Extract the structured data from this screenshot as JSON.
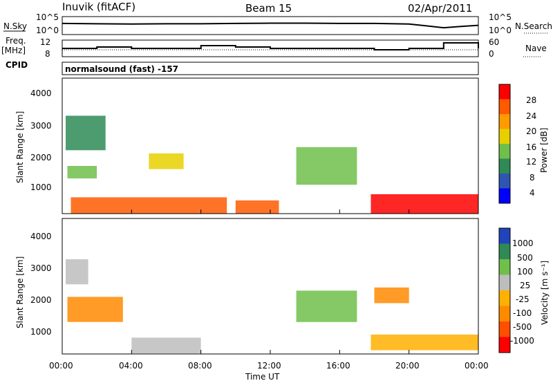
{
  "header": {
    "station": "Inuvik (fitACF)",
    "beam": "Beam 15",
    "date": "02/Apr/2011"
  },
  "nsky_panel": {
    "left_label": "N.Sky",
    "left_ticks": [
      "10^5",
      "10^0"
    ],
    "right_ticks": [
      "10^5",
      "10^0"
    ],
    "right_label": "N.Search"
  },
  "freq_panel": {
    "left_label_line1": "Freq.",
    "left_label_line2": "[MHz]",
    "left_ticks": [
      "12",
      "8"
    ],
    "right_ticks": [
      "60",
      "0"
    ],
    "right_label": "Nave"
  },
  "cpid": {
    "label": "CPID",
    "mode": "normalsound (fast) -157"
  },
  "power_panel": {
    "ylabel": "Slant Range [km]",
    "yticks": [
      "4000",
      "3000",
      "2000",
      "1000"
    ],
    "colorbar_label": "Power [dB]",
    "colorbar_ticks": [
      "28",
      "24",
      "20",
      "16",
      "12",
      "8",
      "4"
    ]
  },
  "velocity_panel": {
    "ylabel": "Slant Range [km]",
    "yticks": [
      "4000",
      "3000",
      "2000",
      "1000"
    ],
    "colorbar_label": "Velocity [m s⁻¹]",
    "colorbar_ticks": [
      "1000",
      "500",
      "100",
      "25",
      "-25",
      "-100",
      "-500",
      "-1000"
    ]
  },
  "xaxis": {
    "label": "Time UT",
    "ticks": [
      "00:00",
      "04:00",
      "08:00",
      "12:00",
      "16:00",
      "20:00",
      "00:00"
    ]
  },
  "colors": {
    "power_scale": [
      "#0000ff",
      "#2f55b0",
      "#2e8b57",
      "#6fbf4a",
      "#e8d000",
      "#ff9a00",
      "#ff5a00",
      "#ff0000"
    ],
    "velocity_scale": [
      "#2244bb",
      "#2e8b57",
      "#6fbf4a",
      "#bdbdbd",
      "#ffb000",
      "#ff8a00",
      "#ff4e00",
      "#ff0000"
    ]
  },
  "chart_data": [
    {
      "type": "line",
      "title": "N.Sky / N.Search",
      "x": [
        "00:00",
        "02:00",
        "04:00",
        "06:00",
        "08:00",
        "10:00",
        "12:00",
        "14:00",
        "16:00",
        "18:00",
        "20:00",
        "21:00",
        "22:00",
        "23:00",
        "00:00"
      ],
      "series": [
        {
          "name": "N.Sky",
          "values": [
            3.2,
            3.1,
            3.0,
            3.1,
            3.1,
            3.2,
            3.3,
            3.3,
            3.2,
            3.2,
            3.0,
            2.4,
            1.8,
            2.2,
            2.6
          ]
        }
      ],
      "ylim": [
        0,
        5
      ],
      "yscale": "log10"
    },
    {
      "type": "line",
      "title": "Freq. / Nave",
      "x": [
        "00:00",
        "02:00",
        "04:00",
        "06:00",
        "08:00",
        "10:00",
        "12:00",
        "14:00",
        "16:00",
        "18:00",
        "20:00",
        "21:00",
        "22:00",
        "23:00",
        "00:00"
      ],
      "series": [
        {
          "name": "Freq.",
          "values": [
            10.5,
            11.0,
            10.5,
            10.5,
            11.5,
            11.0,
            10.5,
            10.5,
            10.5,
            10.0,
            10.5,
            10.5,
            12.5,
            12.5,
            10.5
          ]
        }
      ],
      "ylim": [
        8,
        13
      ]
    },
    {
      "type": "heatmap",
      "title": "Power",
      "xlabel": "Time UT",
      "ylabel": "Slant Range [km]",
      "ylim": [
        180,
        4500
      ],
      "colorbar": {
        "label": "Power [dB]",
        "range": [
          0,
          30
        ]
      },
      "regions": [
        {
          "t0": 0.5,
          "t1": 9.5,
          "r0": 180,
          "r1": 700,
          "value": 26
        },
        {
          "t0": 10.0,
          "t1": 12.5,
          "r0": 180,
          "r1": 600,
          "value": 24
        },
        {
          "t0": 17.8,
          "t1": 24.0,
          "r0": 180,
          "r1": 800,
          "value": 27
        },
        {
          "t0": 0.3,
          "t1": 2.0,
          "r0": 1300,
          "r1": 1700,
          "value": 12
        },
        {
          "t0": 13.5,
          "t1": 17.0,
          "r0": 1100,
          "r1": 2300,
          "value": 14
        },
        {
          "t0": 0.2,
          "t1": 2.5,
          "r0": 2200,
          "r1": 3300,
          "value": 10
        },
        {
          "t0": 5.0,
          "t1": 7.0,
          "r0": 1600,
          "r1": 2100,
          "value": 18
        }
      ]
    },
    {
      "type": "heatmap",
      "title": "Velocity",
      "xlabel": "Time UT",
      "ylabel": "Slant Range [km]",
      "ylim": [
        180,
        4500
      ],
      "colorbar": {
        "label": "Velocity",
        "range": [
          -1000,
          1000
        ]
      },
      "regions": [
        {
          "t0": 0.3,
          "t1": 3.5,
          "r0": 1200,
          "r1": 2000,
          "value": -300
        },
        {
          "t0": 0.2,
          "t1": 1.5,
          "r0": 2400,
          "r1": 3200,
          "value": 0
        },
        {
          "t0": 4.0,
          "t1": 8.0,
          "r0": 200,
          "r1": 700,
          "value": 0
        },
        {
          "t0": 13.5,
          "t1": 17.0,
          "r0": 1200,
          "r1": 2200,
          "value": 300
        },
        {
          "t0": 17.8,
          "t1": 24.0,
          "r0": 300,
          "r1": 800,
          "value": -200
        },
        {
          "t0": 18.0,
          "t1": 20.0,
          "r0": 1800,
          "r1": 2300,
          "value": -300
        }
      ]
    }
  ]
}
